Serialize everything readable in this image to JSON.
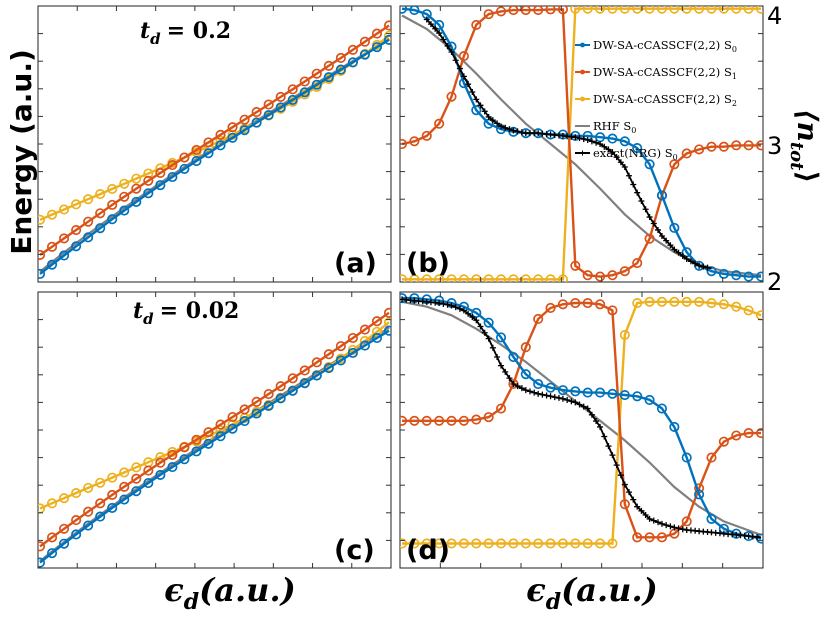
{
  "figure": {
    "ylabel_left": "Energy (a.u.)",
    "ylabel_right": "⟨n",
    "ylabel_right_sub": "tot",
    "ylabel_right_close": "⟩",
    "xlabel": "ϵ",
    "xlabel_sub": "d",
    "xlabel_units": "(a.u.)",
    "right_ticks": [
      "4",
      "3",
      "2"
    ],
    "colors": {
      "S0": "#0072BD",
      "S1": "#D95319",
      "S2": "#EDB120",
      "RHF": "#808080",
      "NRG": "#000000"
    }
  },
  "chart_data": [
    {
      "type": "line",
      "panel_label": "(a)",
      "annotation_var": "t",
      "annotation_sub": "d",
      "annotation_value": "= 0.2",
      "xlabel": "",
      "ylabel": "",
      "x": [
        0,
        1,
        2,
        3,
        4,
        5,
        6,
        7,
        8,
        9,
        10,
        11,
        12,
        13,
        14,
        15,
        16,
        17,
        18,
        19,
        20,
        21,
        22,
        23,
        24,
        25,
        26,
        27,
        28,
        29
      ],
      "series": [
        {
          "key": "S0",
          "values": [
            -15,
            -11.6,
            -8.2,
            -4.8,
            -1.5,
            1.9,
            5.2,
            8.4,
            11.6,
            14.8,
            17.8,
            20.8,
            23.8,
            26.7,
            29.6,
            32.5,
            35.3,
            38.1,
            40.9,
            43.7,
            46.5,
            49.3,
            52.1,
            54.9,
            57.7,
            60.5,
            63.2,
            66,
            68.8,
            71.5
          ]
        },
        {
          "key": "S1",
          "values": [
            -8,
            -5,
            -1.9,
            1.2,
            4.3,
            7.4,
            10.5,
            13.5,
            16.5,
            19.4,
            22.3,
            25.2,
            28,
            30.8,
            33.6,
            36.4,
            39.2,
            42,
            44.8,
            47.6,
            50.4,
            53.2,
            56.1,
            59,
            61.9,
            64.8,
            67.8,
            70.8,
            73.8,
            76.8
          ]
        },
        {
          "key": "S2",
          "values": [
            5,
            6.9,
            8.8,
            10.7,
            12.6,
            14.5,
            16.4,
            18.3,
            20.2,
            22.1,
            24,
            26,
            28,
            30,
            32.1,
            34.2,
            36.4,
            38.7,
            41,
            43.5,
            46,
            48.6,
            51.3,
            54.1,
            57,
            60,
            63.1,
            66.3,
            69.6,
            73
          ]
        },
        {
          "key": "RHF",
          "values": [
            -14.2,
            -10.6,
            -7.1,
            -3.7,
            -0.3,
            3,
            6.2,
            9.4,
            12.5,
            15.6,
            18.6,
            21.6,
            24.5,
            27.4,
            30.3,
            33.2,
            36,
            38.8,
            41.6,
            44.4,
            47.2,
            50,
            52.8,
            55.5,
            58.3,
            61,
            63.7,
            66.5,
            69.2,
            71.9
          ]
        }
      ]
    },
    {
      "type": "line",
      "panel_label": "(b)",
      "xlabel": "",
      "ylabel": "",
      "ylim": [
        2,
        4
      ],
      "x": [
        0,
        1,
        2,
        3,
        4,
        5,
        6,
        7,
        8,
        9,
        10,
        11,
        12,
        13,
        14,
        15,
        16,
        17,
        18,
        19,
        20,
        21,
        22,
        23,
        24,
        25,
        26,
        27,
        28,
        29
      ],
      "series": [
        {
          "key": "S0",
          "name": "DW-SA-cCASSCF(2,2) S",
          "name_sub": "0",
          "values": [
            4.0,
            3.99,
            3.96,
            3.88,
            3.72,
            3.45,
            3.25,
            3.15,
            3.11,
            3.09,
            3.08,
            3.08,
            3.07,
            3.07,
            3.06,
            3.06,
            3.05,
            3.04,
            3.02,
            2.97,
            2.85,
            2.62,
            2.38,
            2.2,
            2.1,
            2.06,
            2.04,
            2.03,
            2.02,
            2.02
          ]
        },
        {
          "key": "S1",
          "name": "DW-SA-cCASSCF(2,2) S",
          "name_sub": "1",
          "values": [
            3.0,
            3.02,
            3.06,
            3.15,
            3.35,
            3.65,
            3.88,
            3.96,
            3.98,
            3.99,
            3.99,
            3.99,
            3.995,
            3.995,
            2.1,
            2.03,
            2.02,
            2.03,
            2.06,
            2.12,
            2.3,
            2.62,
            2.85,
            2.93,
            2.96,
            2.98,
            2.98,
            2.99,
            2.99,
            2.99
          ]
        },
        {
          "key": "S2",
          "name": "DW-SA-cCASSCF(2,2) S",
          "name_sub": "2",
          "values": [
            2.0,
            2.0,
            2.0,
            2.0,
            2.0,
            2.0,
            2.0,
            2.0,
            2.0,
            2.0,
            2.0,
            2.0,
            2.0,
            2.0,
            4.0,
            4.0,
            4.0,
            4.0,
            4.0,
            4.0,
            4.0,
            4.0,
            4.0,
            4.0,
            4.0,
            4.0,
            4.0,
            4.0,
            4.0,
            4.0
          ]
        },
        {
          "key": "RHF",
          "name": "RHF S",
          "name_sub": "0",
          "x": [
            0,
            2,
            4,
            6,
            8,
            10,
            12,
            14,
            16,
            18,
            20,
            22,
            24,
            26,
            29
          ],
          "values": [
            3.95,
            3.85,
            3.7,
            3.52,
            3.33,
            3.15,
            3.0,
            2.85,
            2.67,
            2.48,
            2.32,
            2.2,
            2.11,
            2.06,
            2.03
          ]
        },
        {
          "key": "NRG",
          "name": "exact(NRG) S",
          "name_sub": "0",
          "x": [
            2,
            3,
            4,
            5,
            6,
            7,
            8,
            9,
            10,
            11,
            12,
            13,
            14,
            15,
            16,
            17,
            18,
            19,
            20,
            21,
            22,
            23,
            24,
            25
          ],
          "values": [
            3.92,
            3.82,
            3.68,
            3.5,
            3.33,
            3.2,
            3.13,
            3.1,
            3.08,
            3.08,
            3.07,
            3.06,
            3.05,
            3.03,
            3.0,
            2.94,
            2.83,
            2.64,
            2.46,
            2.32,
            2.22,
            2.15,
            2.1,
            2.08
          ]
        }
      ],
      "legend_position": "top-right"
    },
    {
      "type": "line",
      "panel_label": "(c)",
      "annotation_var": "t",
      "annotation_sub": "d",
      "annotation_value": "= 0.02",
      "xlabel": "",
      "ylabel": "",
      "x": [
        0,
        1,
        2,
        3,
        4,
        5,
        6,
        7,
        8,
        9,
        10,
        11,
        12,
        13,
        14,
        15,
        16,
        17,
        18,
        19,
        20,
        21,
        22,
        23,
        24,
        25,
        26,
        27,
        28,
        29
      ],
      "series": [
        {
          "key": "S0",
          "values": [
            -16,
            -12.5,
            -9,
            -5.6,
            -2.3,
            1,
            4.2,
            7.3,
            10.4,
            13.4,
            16.4,
            19.3,
            22.2,
            25.1,
            27.9,
            30.7,
            33.5,
            36.3,
            39.1,
            41.9,
            44.7,
            47.5,
            50.3,
            53.1,
            55.9,
            58.7,
            61.5,
            64.2,
            67,
            69.7
          ]
        },
        {
          "key": "S1",
          "values": [
            -10,
            -6.7,
            -3.5,
            -0.3,
            2.8,
            5.9,
            9,
            12,
            15,
            18,
            20.9,
            23.8,
            26.6,
            29.4,
            32.2,
            35,
            37.8,
            40.6,
            43.4,
            46.3,
            49.2,
            52.1,
            55,
            58,
            61,
            64,
            67,
            70.1,
            73.2,
            76.3
          ]
        },
        {
          "key": "S2",
          "values": [
            4,
            5.9,
            7.8,
            9.7,
            11.6,
            13.5,
            15.4,
            17.3,
            19.2,
            21.1,
            23,
            24.9,
            26.8,
            28.8,
            30.8,
            32.9,
            35.1,
            37.4,
            39.8,
            42.3,
            44.9,
            47.6,
            50.4,
            53.3,
            56.3,
            59.4,
            62.6,
            65.9,
            69.3,
            72.8
          ]
        },
        {
          "key": "RHF",
          "values": [
            -15.5,
            -11.9,
            -8.4,
            -5,
            -1.6,
            1.7,
            4.9,
            8.1,
            11.2,
            14.2,
            17.2,
            20.2,
            23.1,
            26,
            28.9,
            31.7,
            34.5,
            37.3,
            40.1,
            42.9,
            45.7,
            48.5,
            51.3,
            54.1,
            56.9,
            59.7,
            62.5,
            65.3,
            68,
            70.8
          ]
        }
      ]
    },
    {
      "type": "line",
      "panel_label": "(d)",
      "xlabel": "",
      "ylabel": "",
      "ylim": [
        2,
        4
      ],
      "x": [
        0,
        1,
        2,
        3,
        4,
        5,
        6,
        7,
        8,
        9,
        10,
        11,
        12,
        13,
        14,
        15,
        16,
        17,
        18,
        19,
        20,
        21,
        22,
        23,
        24,
        25,
        26,
        27,
        28,
        29
      ],
      "series": [
        {
          "key": "S0",
          "values": [
            4.0,
            4.0,
            3.99,
            3.98,
            3.96,
            3.93,
            3.88,
            3.8,
            3.68,
            3.52,
            3.38,
            3.3,
            3.27,
            3.25,
            3.24,
            3.23,
            3.23,
            3.22,
            3.21,
            3.2,
            3.17,
            3.1,
            2.95,
            2.7,
            2.4,
            2.2,
            2.12,
            2.08,
            2.06,
            2.04
          ]
        },
        {
          "key": "S1",
          "values": [
            3.0,
            3.0,
            3.0,
            3.0,
            3.0,
            3.0,
            3.01,
            3.03,
            3.1,
            3.3,
            3.6,
            3.83,
            3.92,
            3.95,
            3.96,
            3.96,
            3.95,
            3.9,
            2.32,
            2.05,
            2.05,
            2.05,
            2.08,
            2.18,
            2.45,
            2.7,
            2.83,
            2.88,
            2.9,
            2.9
          ]
        },
        {
          "key": "S2",
          "values": [
            2.0,
            2.0,
            2.0,
            2.0,
            2.0,
            2.0,
            2.0,
            2.0,
            2.0,
            2.0,
            2.0,
            2.0,
            2.0,
            2.0,
            2.0,
            2.0,
            2.0,
            2.0,
            3.7,
            3.96,
            3.97,
            3.97,
            3.97,
            3.97,
            3.97,
            3.96,
            3.95,
            3.93,
            3.9,
            3.86
          ]
        },
        {
          "key": "RHF",
          "x": [
            0,
            2,
            4,
            6,
            8,
            10,
            12,
            14,
            16,
            18,
            20,
            22,
            24,
            26,
            29
          ],
          "values": [
            3.97,
            3.93,
            3.86,
            3.75,
            3.62,
            3.48,
            3.32,
            3.16,
            3.0,
            2.84,
            2.66,
            2.46,
            2.3,
            2.18,
            2.07
          ]
        },
        {
          "key": "NRG",
          "x": [
            0,
            1,
            2,
            3,
            4,
            5,
            6,
            7,
            8,
            9,
            10,
            11,
            12,
            13,
            14,
            15,
            16,
            17,
            18,
            19,
            20,
            21,
            22,
            23,
            24,
            25,
            26,
            27,
            28,
            29
          ],
          "values": [
            3.99,
            3.98,
            3.97,
            3.96,
            3.94,
            3.9,
            3.82,
            3.67,
            3.45,
            3.3,
            3.25,
            3.22,
            3.2,
            3.18,
            3.15,
            3.1,
            2.95,
            2.72,
            2.48,
            2.3,
            2.2,
            2.16,
            2.13,
            2.11,
            2.1,
            2.09,
            2.08,
            2.07,
            2.06,
            2.05
          ]
        }
      ]
    }
  ]
}
